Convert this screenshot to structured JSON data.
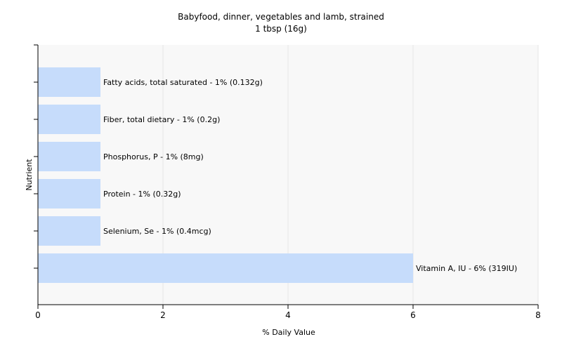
{
  "chart_data": {
    "type": "bar",
    "orientation": "horizontal",
    "title": "Babyfood, dinner, vegetables and lamb, strained",
    "subtitle": "1 tbsp (16g)",
    "xlabel": "% Daily Value",
    "ylabel": "Nutrient",
    "xlim": [
      0,
      8
    ],
    "xticks": [
      0,
      2,
      4,
      6,
      8
    ],
    "grid": true,
    "legend": "none",
    "bar_color": "#c6dcfb",
    "categories": [
      "Fatty acids, total saturated",
      "Fiber, total dietary",
      "Phosphorus, P",
      "Protein",
      "Selenium, Se",
      "Vitamin A, IU"
    ],
    "values": [
      1,
      1,
      1,
      1,
      1,
      6
    ],
    "labels": [
      "Fatty acids, total saturated - 1% (0.132g)",
      "Fiber, total dietary - 1% (0.2g)",
      "Phosphorus, P - 1% (8mg)",
      "Protein - 1% (0.32g)",
      "Selenium, Se - 1% (0.4mcg)",
      "Vitamin A, IU - 6% (319IU)"
    ]
  }
}
